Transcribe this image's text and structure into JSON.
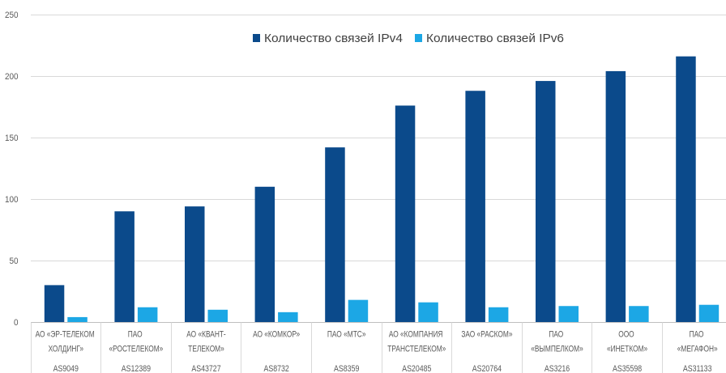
{
  "chart_data": {
    "type": "bar",
    "ylim": [
      0,
      250
    ],
    "yticks": [
      0,
      50,
      100,
      150,
      200,
      250
    ],
    "grid": true,
    "legend": "top-center",
    "categories": [
      "АО «ЭР-ТЕЛЕКОМ ХОЛДИНГ»",
      "ПАО «РОСТЕЛЕКОМ»",
      "АО «КВАНТ-ТЕЛЕКОМ»",
      "АО «КОМКОР»",
      "ПАО «МТС»",
      "АО «КОМПАНИЯ ТРАНСТЕЛЕКОМ»",
      "ЗАО «РАСКОМ»",
      "ПАО «ВЫМПЕЛКОМ»",
      "ООО «ИНЕТКОМ»",
      "ПАО «МЕГАФОН»"
    ],
    "category_sublabels": [
      "AS9049",
      "AS12389",
      "AS43727",
      "AS8732",
      "AS8359",
      "AS20485",
      "AS20764",
      "AS3216",
      "AS35598",
      "AS31133"
    ],
    "series": [
      {
        "name": "Количество связей IPv4",
        "color": "#0b4a8b",
        "values": [
          30,
          90,
          94,
          110,
          142,
          176,
          188,
          196,
          204,
          216
        ]
      },
      {
        "name": "Количество связей IPv6",
        "color": "#1ca7e5",
        "values": [
          4,
          12,
          10,
          8,
          18,
          16,
          12,
          13,
          13,
          14
        ]
      }
    ]
  }
}
